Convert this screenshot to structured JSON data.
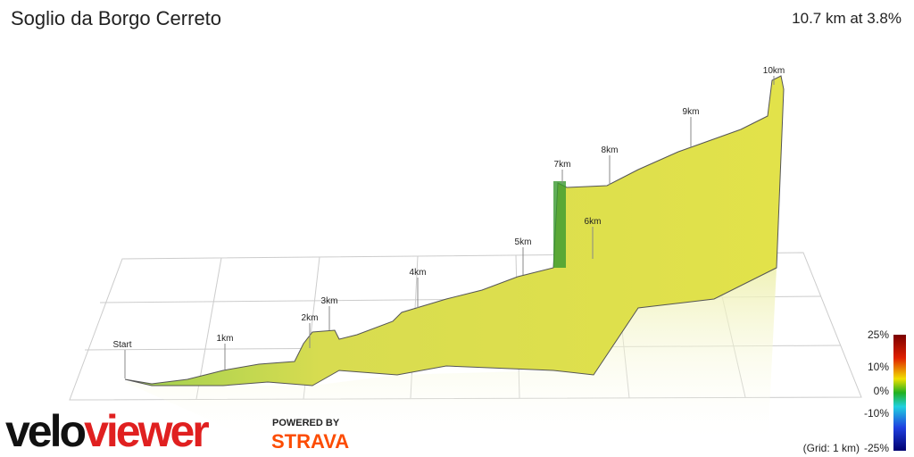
{
  "header": {
    "title": "Soglio da Borgo Cerreto",
    "summary": "10.7 km at 3.8%"
  },
  "profile": {
    "markers": [
      "Start",
      "1km",
      "2km",
      "3km",
      "4km",
      "5km",
      "6km",
      "7km",
      "8km",
      "9km",
      "10km"
    ]
  },
  "colorbar": {
    "labels": [
      "25%",
      "10%",
      "0%",
      "-10%",
      "-25%"
    ],
    "grid_note": "(Grid: 1 km)"
  },
  "branding": {
    "logo_part1": "velo",
    "logo_part2": "viewer",
    "powered_by": "POWERED BY",
    "partner": "STRAVA"
  }
}
